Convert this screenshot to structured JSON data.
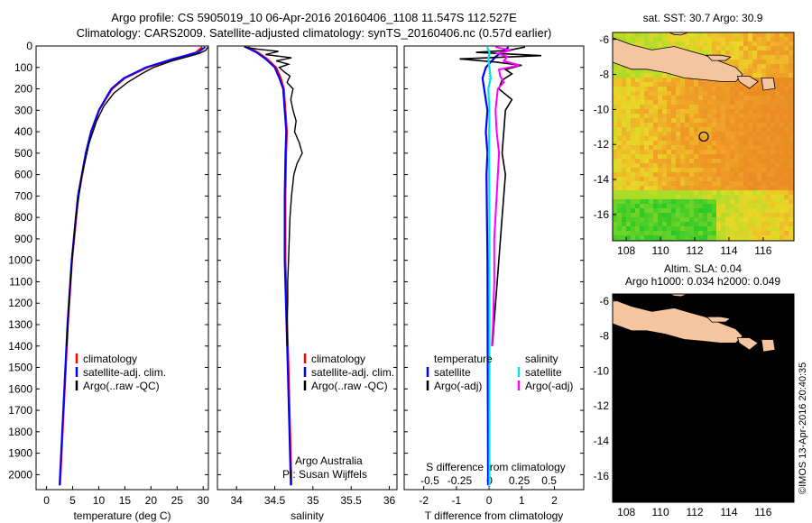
{
  "header": {
    "line1": "Argo profile: CS 5905019_10 06-Apr-2016 20160406_1108 11.547S 112.527E",
    "line2": "Climatology: CARS2009. Satellite-adjusted climatology: synTS_20160406.nc (0.57d earlier)"
  },
  "colors": {
    "clim": "#ff0000",
    "sat": "#0000ff",
    "argo": "#000000",
    "sat_s": "#00e5e5",
    "argo_s": "#ff00ff",
    "land": "#f5c5a0"
  },
  "watermark": "©IMOS 13-Apr-2016 20:40:35",
  "chart_data": [
    {
      "type": "line",
      "name": "temperature",
      "xlabel": "temperature (deg C)",
      "xlim": [
        -2,
        31
      ],
      "xticks": [
        0,
        5,
        10,
        15,
        20,
        25,
        30
      ],
      "xtick_labels": [
        "0",
        "5",
        "10",
        "15",
        "20",
        "25",
        "30"
      ],
      "ylim": [
        2070,
        0
      ],
      "yticks": [
        0,
        100,
        200,
        300,
        400,
        500,
        600,
        700,
        800,
        900,
        1000,
        1100,
        1200,
        1300,
        1400,
        1500,
        1600,
        1700,
        1800,
        1900,
        2000
      ],
      "ytick_labels": [
        "0",
        "100",
        "200",
        "300",
        "400",
        "500",
        "600",
        "700",
        "800",
        "900",
        "1000",
        "1100",
        "1200",
        "1300",
        "1400",
        "1500",
        "1600",
        "1700",
        "1800",
        "1900",
        "2000"
      ],
      "legend": {
        "entries": [
          "climatology",
          "satellite-adj. clim.",
          "Argo(..raw -QC)"
        ],
        "placement": "bottom-right"
      },
      "series": [
        {
          "name": "climatology",
          "color": "#ff0000",
          "depth": [
            5,
            30,
            60,
            100,
            150,
            200,
            250,
            300,
            400,
            500,
            700,
            1000,
            1300,
            1500,
            1800,
            2050
          ],
          "values": [
            29.8,
            28.6,
            24.6,
            19.3,
            15.0,
            12.6,
            11.3,
            10.1,
            8.6,
            7.6,
            6.1,
            4.9,
            4.1,
            3.7,
            3.1,
            2.6
          ]
        },
        {
          "name": "satellite-adj. clim.",
          "color": "#0000ff",
          "depth": [
            5,
            30,
            60,
            100,
            150,
            200,
            250,
            300,
            400,
            500,
            700,
            1000,
            1300,
            1500,
            1800,
            2050
          ],
          "values": [
            30.4,
            29.0,
            24.2,
            19.0,
            14.8,
            12.4,
            11.2,
            10.0,
            8.5,
            7.5,
            6.0,
            4.8,
            4.0,
            3.6,
            3.0,
            2.5
          ]
        },
        {
          "name": "Argo(..raw -QC)",
          "color": "#000000",
          "depth": [
            5,
            20,
            35,
            50,
            70,
            100,
            130,
            170,
            220,
            280,
            350,
            450,
            600,
            800,
            1000,
            1200,
            1400
          ],
          "values": [
            30.9,
            30.5,
            29.2,
            27.0,
            24.0,
            20.5,
            18.2,
            15.5,
            12.9,
            11.0,
            9.6,
            8.2,
            6.8,
            5.6,
            4.9,
            4.3,
            3.9
          ]
        }
      ]
    },
    {
      "type": "line",
      "name": "salinity",
      "xlabel": "salinity",
      "xlim": [
        33.75,
        36.1
      ],
      "xticks": [
        34,
        34.5,
        35,
        35.5,
        36
      ],
      "xtick_labels": [
        "34",
        "34.5",
        "35",
        "35.5",
        "36"
      ],
      "ylim": [
        2070,
        0
      ],
      "legend": {
        "entries": [
          "climatology",
          "satellite-adj. clim.",
          "Argo(..raw -QC)"
        ],
        "placement": "right"
      },
      "annotation": [
        "Argo Australia",
        "PI: Susan Wijffels"
      ],
      "series": [
        {
          "name": "climatology",
          "color": "#ff0000",
          "depth": [
            5,
            30,
            60,
            100,
            150,
            200,
            300,
            400,
            500,
            700,
            1000,
            1500,
            2050
          ],
          "values": [
            34.15,
            34.28,
            34.4,
            34.52,
            34.58,
            34.62,
            34.64,
            34.66,
            34.65,
            34.64,
            34.64,
            34.68,
            34.72
          ]
        },
        {
          "name": "satellite-adj. clim.",
          "color": "#0000ff",
          "depth": [
            5,
            30,
            60,
            100,
            150,
            200,
            300,
            400,
            500,
            700,
            1000,
            1500,
            2050
          ],
          "values": [
            34.12,
            34.26,
            34.38,
            34.5,
            34.56,
            34.61,
            34.63,
            34.65,
            34.64,
            34.63,
            34.63,
            34.67,
            34.71
          ]
        },
        {
          "name": "Argo(..raw -QC)",
          "color": "#000000",
          "depth": [
            5,
            15,
            25,
            40,
            55,
            70,
            85,
            100,
            120,
            140,
            170,
            200,
            250,
            300,
            350,
            400,
            450,
            500,
            550,
            600,
            700,
            800,
            900,
            1000,
            1100,
            1200,
            1300,
            1400
          ],
          "values": [
            34.1,
            34.28,
            34.55,
            34.38,
            34.72,
            34.52,
            34.68,
            34.56,
            34.62,
            34.7,
            34.66,
            34.74,
            34.71,
            34.74,
            34.78,
            34.76,
            34.82,
            34.86,
            34.79,
            34.75,
            34.72,
            34.7,
            34.69,
            34.68,
            34.67,
            34.67,
            34.66,
            34.66
          ]
        }
      ]
    },
    {
      "type": "line",
      "name": "difference",
      "xlabel": "T difference from climatology",
      "xlim": [
        -2.6,
        2.9
      ],
      "xticks": [
        -2,
        -1,
        0,
        1,
        2
      ],
      "xtick_labels": [
        "-2",
        "-1",
        "0",
        "1",
        "2"
      ],
      "top_axis_label": "S difference from climatology",
      "top_ticks": [
        -0.5,
        -0.25,
        0,
        0.25,
        0.5
      ],
      "top_tick_labels": [
        "-0.5",
        "-0.25",
        "0",
        "0.25",
        "0.5"
      ],
      "ylim": [
        2070,
        0
      ],
      "legend": {
        "temperature_title": "temperature",
        "salinity_title": "salinity",
        "temperature_entries": [
          "satellite",
          "Argo(-adj)"
        ],
        "salinity_entries": [
          "satellite",
          "Argo(-adj)"
        ],
        "placement": "right"
      },
      "series": [
        {
          "name": "T satellite",
          "color": "#0000ff",
          "depth": [
            5,
            50,
            100,
            150,
            200,
            300,
            400,
            500,
            600,
            1000,
            1500,
            2050
          ],
          "values": [
            0.6,
            0.2,
            -0.1,
            -0.2,
            -0.15,
            -0.05,
            -0.1,
            -0.05,
            -0.08,
            -0.05,
            -0.04,
            -0.03
          ]
        },
        {
          "name": "T Argo(-adj)",
          "color": "#000000",
          "depth": [
            5,
            20,
            30,
            45,
            60,
            75,
            90,
            110,
            130,
            160,
            200,
            250,
            300,
            400,
            500,
            600,
            800,
            1000,
            1200,
            1400
          ],
          "values": [
            1.1,
            0.6,
            -0.4,
            1.6,
            -0.9,
            0.2,
            1.0,
            0.5,
            0.7,
            0.4,
            0.3,
            0.7,
            0.5,
            0.45,
            0.4,
            0.5,
            0.4,
            0.3,
            0.2,
            0.1
          ]
        },
        {
          "name": "S satellite",
          "color": "#00e5e5",
          "depth": [
            5,
            30,
            60,
            100,
            150,
            200,
            300,
            500,
            800,
            1200,
            1600,
            2050
          ],
          "values": [
            -0.02,
            0.0,
            -0.01,
            0.0,
            0.01,
            -0.01,
            0.0,
            -0.005,
            0.0,
            0.0,
            0.0,
            0.0
          ]
        },
        {
          "name": "S Argo(-adj)",
          "color": "#ff00ff",
          "depth": [
            5,
            20,
            35,
            50,
            70,
            90,
            110,
            140,
            170,
            200,
            300,
            400,
            500,
            700,
            900,
            1100,
            1300,
            1400
          ],
          "values": [
            0.05,
            0.18,
            0.07,
            0.15,
            0.12,
            0.25,
            0.08,
            0.09,
            0.12,
            0.07,
            0.05,
            0.06,
            0.08,
            0.06,
            0.04,
            0.04,
            0.03,
            0.02
          ]
        }
      ]
    },
    {
      "type": "heatmap",
      "name": "sst_map",
      "title": "sat. SST: 30.7  Argo: 30.9",
      "xticks": [
        108,
        110,
        112,
        114,
        116
      ],
      "xtick_labels": [
        "108",
        "110",
        "112",
        "114",
        "116"
      ],
      "yticks": [
        -6,
        -8,
        -10,
        -12,
        -14,
        -16
      ],
      "ytick_labels": [
        "-6",
        "-8",
        "-10",
        "-12",
        "-14",
        "-16"
      ],
      "xlim": [
        107.2,
        117.8
      ],
      "ylim": [
        -17.5,
        -5.6
      ],
      "marker": {
        "lon": 112.527,
        "lat": -11.547
      }
    },
    {
      "type": "heatmap",
      "name": "sla_map",
      "title": [
        "Altim. SLA: 0.04",
        "Argo h1000: 0.034 h2000: 0.049"
      ],
      "xticks": [
        108,
        110,
        112,
        114,
        116
      ],
      "xtick_labels": [
        "108",
        "110",
        "112",
        "114",
        "116"
      ],
      "yticks": [
        -6,
        -8,
        -10,
        -12,
        -14,
        -16
      ],
      "ytick_labels": [
        "-6",
        "-8",
        "-10",
        "-12",
        "-14",
        "-16"
      ],
      "xlim": [
        107.2,
        117.8
      ],
      "ylim": [
        -17.5,
        -5.6
      ],
      "marker": {
        "lon": 112.527,
        "lat": -11.547
      }
    }
  ]
}
